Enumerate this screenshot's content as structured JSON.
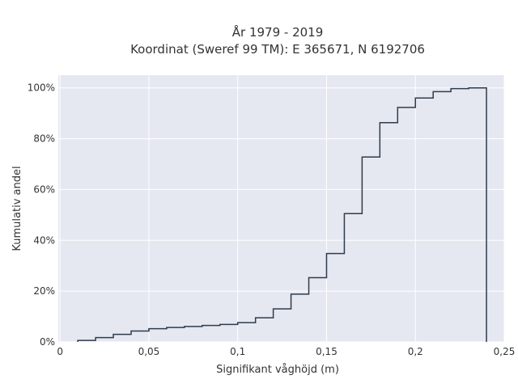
{
  "chart_data": {
    "type": "step",
    "title": "År 1979 - 2019",
    "subtitle": "Koordinat (Sweref 99 TM): E 365671, N 6192706",
    "xlabel": "Signifikant våghöjd (m)",
    "ylabel": "Kumulativ andel",
    "xlim": [
      -0.001,
      0.25
    ],
    "ylim": [
      0,
      1.05
    ],
    "xticks": [
      0,
      0.05,
      0.1,
      0.15,
      0.2,
      0.25
    ],
    "xtick_labels": [
      "0",
      "0,05",
      "0,1",
      "0,15",
      "0,2",
      "0,25"
    ],
    "yticks": [
      0,
      0.2,
      0.4,
      0.6,
      0.8,
      1.0
    ],
    "ytick_labels": [
      "0%",
      "20%",
      "40%",
      "60%",
      "80%",
      "100%"
    ],
    "grid": true,
    "background": "#e5e8f1",
    "line_color": "#2f3b4c",
    "series": [
      {
        "bin_edges": [
          0.01,
          0.02,
          0.03,
          0.04,
          0.05,
          0.06,
          0.07,
          0.08,
          0.09,
          0.1,
          0.11,
          0.12,
          0.13,
          0.14,
          0.15,
          0.16,
          0.17,
          0.18,
          0.19,
          0.2,
          0.21,
          0.22,
          0.23,
          0.24
        ],
        "values": [
          0.006,
          0.017,
          0.03,
          0.043,
          0.052,
          0.057,
          0.061,
          0.065,
          0.069,
          0.076,
          0.095,
          0.13,
          0.188,
          0.253,
          0.348,
          0.505,
          0.728,
          0.863,
          0.923,
          0.96,
          0.985,
          0.997,
          1.0
        ]
      }
    ]
  }
}
